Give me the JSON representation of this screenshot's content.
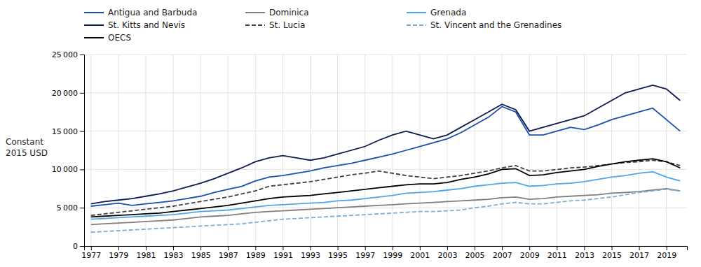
{
  "chart_data": {
    "type": "line",
    "y_label": "Constant\n2015 USD",
    "x": [
      1977,
      1978,
      1979,
      1980,
      1981,
      1982,
      1983,
      1984,
      1985,
      1986,
      1987,
      1988,
      1989,
      1990,
      1991,
      1992,
      1993,
      1994,
      1995,
      1996,
      1997,
      1998,
      1999,
      2000,
      2001,
      2002,
      2003,
      2004,
      2005,
      2006,
      2007,
      2008,
      2009,
      2010,
      2011,
      2012,
      2013,
      2014,
      2015,
      2016,
      2017,
      2018,
      2019,
      2020
    ],
    "xlim": [
      1976.5,
      2020.5
    ],
    "xticks": [
      1977,
      1979,
      1981,
      1983,
      1985,
      1987,
      1989,
      1991,
      1993,
      1995,
      1997,
      1999,
      2001,
      2003,
      2005,
      2007,
      2009,
      2011,
      2013,
      2015,
      2017,
      2019
    ],
    "ylim": [
      0,
      25000
    ],
    "yticks": [
      0,
      {
        "value": 5000,
        "label": "5 000"
      },
      {
        "value": 10000,
        "label": "10 000"
      },
      {
        "value": 15000,
        "label": "15 000"
      },
      {
        "value": 20000,
        "label": "20 000"
      },
      {
        "value": 25000,
        "label": "25 000"
      }
    ],
    "grid": true,
    "legend": "upper left",
    "series": [
      {
        "name": "Antigua and Barbuda",
        "color": "#1a4fad",
        "line_style": "solid",
        "values": [
          5200,
          5400,
          5600,
          5300,
          5500,
          5700,
          5900,
          6200,
          6500,
          7000,
          7400,
          7800,
          8500,
          9000,
          9200,
          9500,
          9800,
          10200,
          10500,
          10800,
          11200,
          11600,
          12000,
          12500,
          13000,
          13500,
          14000,
          14800,
          15800,
          16800,
          18200,
          17500,
          14500,
          14500,
          15000,
          15500,
          15200,
          15800,
          16500,
          17000,
          17500,
          18000,
          16500,
          15000
        ]
      },
      {
        "name": "Dominica",
        "color": "#7f7f7f",
        "line_style": "solid",
        "values": [
          2800,
          2900,
          3000,
          3100,
          3200,
          3300,
          3400,
          3600,
          3800,
          3900,
          4000,
          4200,
          4400,
          4500,
          4600,
          4700,
          4800,
          4900,
          5000,
          5100,
          5200,
          5300,
          5400,
          5500,
          5600,
          5700,
          5800,
          5900,
          6000,
          6100,
          6300,
          6400,
          6100,
          6200,
          6400,
          6500,
          6600,
          6700,
          6900,
          7000,
          7100,
          7300,
          7500,
          7200
        ]
      },
      {
        "name": "Grenada",
        "color": "#4da6e8",
        "line_style": "solid",
        "values": [
          3500,
          3600,
          3700,
          3800,
          3900,
          4000,
          4100,
          4300,
          4500,
          4600,
          4700,
          4900,
          5100,
          5300,
          5400,
          5500,
          5600,
          5700,
          5900,
          6000,
          6200,
          6400,
          6600,
          6900,
          7000,
          7100,
          7300,
          7500,
          7800,
          8000,
          8200,
          8300,
          7800,
          7900,
          8100,
          8200,
          8400,
          8700,
          9000,
          9200,
          9500,
          9700,
          9000,
          8500
        ]
      },
      {
        "name": "St. Kitts and Nevis",
        "color": "#0d1b50",
        "line_style": "solid",
        "values": [
          5500,
          5800,
          6000,
          6200,
          6500,
          6800,
          7200,
          7700,
          8200,
          8800,
          9500,
          10200,
          11000,
          11500,
          11800,
          11500,
          11200,
          11500,
          12000,
          12500,
          13000,
          13800,
          14500,
          15000,
          14500,
          14000,
          14500,
          15500,
          16500,
          17500,
          18500,
          17800,
          15000,
          15500,
          16000,
          16500,
          17000,
          18000,
          19000,
          20000,
          20500,
          21000,
          20500,
          19000
        ]
      },
      {
        "name": "St. Lucia",
        "color": "#404040",
        "line_style": "dashed",
        "values": [
          4000,
          4200,
          4400,
          4600,
          4800,
          5000,
          5200,
          5500,
          5800,
          6100,
          6400,
          6800,
          7200,
          7800,
          8000,
          8200,
          8400,
          8700,
          9000,
          9300,
          9500,
          9800,
          9500,
          9200,
          9000,
          8800,
          9000,
          9200,
          9500,
          9800,
          10200,
          10500,
          9800,
          9800,
          10000,
          10200,
          10300,
          10500,
          10700,
          10900,
          11000,
          11200,
          11000,
          10500
        ]
      },
      {
        "name": "St. Vincent and the Grenadines",
        "color": "#7bafd4",
        "line_style": "dashed",
        "values": [
          1800,
          1900,
          2000,
          2100,
          2200,
          2300,
          2400,
          2500,
          2600,
          2700,
          2800,
          2900,
          3100,
          3300,
          3500,
          3600,
          3700,
          3800,
          3900,
          4000,
          4100,
          4200,
          4300,
          4400,
          4500,
          4500,
          4600,
          4700,
          5000,
          5200,
          5500,
          5700,
          5500,
          5500,
          5700,
          5900,
          6000,
          6200,
          6400,
          6700,
          7000,
          7200,
          7400,
          7200
        ]
      },
      {
        "name": "OECS",
        "color": "#000000",
        "line_style": "solid",
        "values": [
          3800,
          3900,
          4000,
          4100,
          4200,
          4300,
          4500,
          4700,
          4900,
          5100,
          5300,
          5600,
          5900,
          6200,
          6400,
          6500,
          6600,
          6800,
          7000,
          7200,
          7400,
          7600,
          7800,
          8000,
          8100,
          8100,
          8300,
          8700,
          9000,
          9400,
          10000,
          10100,
          9200,
          9300,
          9600,
          9800,
          10000,
          10400,
          10700,
          11000,
          11200,
          11400,
          11000,
          10200
        ]
      }
    ]
  }
}
